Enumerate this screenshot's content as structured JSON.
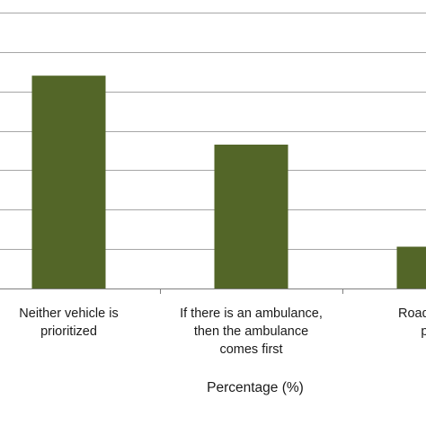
{
  "chart_data": {
    "type": "bar",
    "categories": [
      [
        "Neither vehicle is",
        "prioritized"
      ],
      [
        "If there is an ambulance,",
        "then the ambulance",
        "comes first"
      ],
      [
        "Roads for m",
        "prec"
      ]
    ],
    "values": [
      54,
      36.5,
      10.6
    ],
    "xlabel": "Percentage (%)",
    "ylabel": "",
    "ylim": [
      0,
      70
    ],
    "grid": true,
    "colors": {
      "bar": "#536628",
      "grid": "#a6a6a6",
      "axis": "#7f7f7f"
    }
  }
}
